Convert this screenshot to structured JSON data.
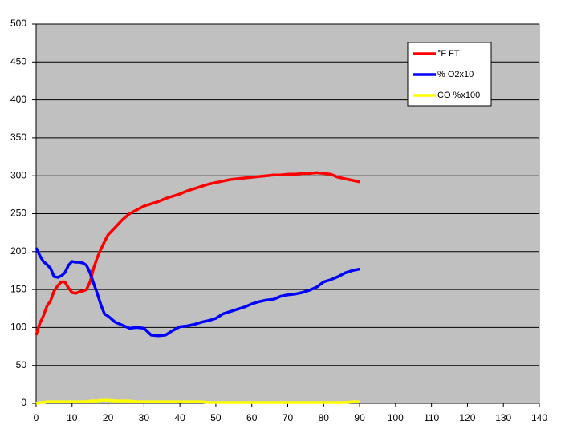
{
  "chart_data": {
    "type": "line",
    "x": [
      0,
      1,
      2,
      3,
      4,
      5,
      6,
      7,
      8,
      9,
      10,
      11,
      12,
      13,
      14,
      15,
      16,
      17,
      18,
      19,
      20,
      22,
      24,
      26,
      28,
      30,
      32,
      34,
      36,
      38,
      40,
      42,
      44,
      46,
      48,
      50,
      52,
      54,
      56,
      58,
      60,
      62,
      64,
      66,
      68,
      70,
      72,
      74,
      76,
      78,
      80,
      82,
      84,
      86,
      88,
      90
    ],
    "series": [
      {
        "name": "°F FT",
        "color": "#ff0000",
        "values": [
          90,
          105,
          115,
          128,
          135,
          148,
          155,
          160,
          160,
          152,
          146,
          145,
          147,
          148,
          150,
          160,
          178,
          192,
          203,
          213,
          222,
          232,
          242,
          250,
          255,
          260,
          263,
          266,
          270,
          273,
          276,
          280,
          283,
          286,
          289,
          291,
          293,
          295,
          296,
          297,
          298,
          299,
          300,
          301,
          301,
          302,
          302,
          303,
          303,
          304,
          303,
          302,
          298,
          296,
          294,
          292
        ]
      },
      {
        "name": "% O2x10",
        "color": "#0000ff",
        "values": [
          205,
          195,
          187,
          183,
          178,
          167,
          166,
          168,
          172,
          182,
          187,
          186,
          186,
          185,
          182,
          172,
          158,
          145,
          130,
          118,
          115,
          107,
          103,
          99,
          100,
          99,
          90,
          89,
          90,
          96,
          101,
          102,
          104,
          107,
          109,
          112,
          118,
          121,
          124,
          127,
          131,
          134,
          136,
          137,
          141,
          143,
          144,
          146,
          149,
          153,
          160,
          163,
          167,
          172,
          175,
          177
        ]
      },
      {
        "name": "CO %x100",
        "color": "#ffff00",
        "values": [
          0,
          1,
          1,
          2,
          2,
          2,
          2,
          2,
          2,
          2,
          2,
          2,
          2,
          2,
          2,
          3,
          3,
          3,
          4,
          4,
          4,
          3,
          3,
          3,
          2,
          2,
          2,
          2,
          2,
          2,
          2,
          2,
          2,
          2,
          1,
          1,
          1,
          1,
          1,
          1,
          1,
          1,
          1,
          1,
          1,
          1,
          1,
          1,
          1,
          1,
          1,
          1,
          1,
          1,
          2,
          2
        ]
      }
    ],
    "xlim": [
      0,
      140
    ],
    "xticks": [
      0,
      10,
      20,
      30,
      40,
      50,
      60,
      70,
      80,
      90,
      100,
      110,
      120,
      130,
      140
    ],
    "ylim": [
      0,
      500
    ],
    "yticks": [
      0,
      50,
      100,
      150,
      200,
      250,
      300,
      350,
      400,
      450,
      500
    ],
    "grid": true,
    "legend": "top-right"
  }
}
